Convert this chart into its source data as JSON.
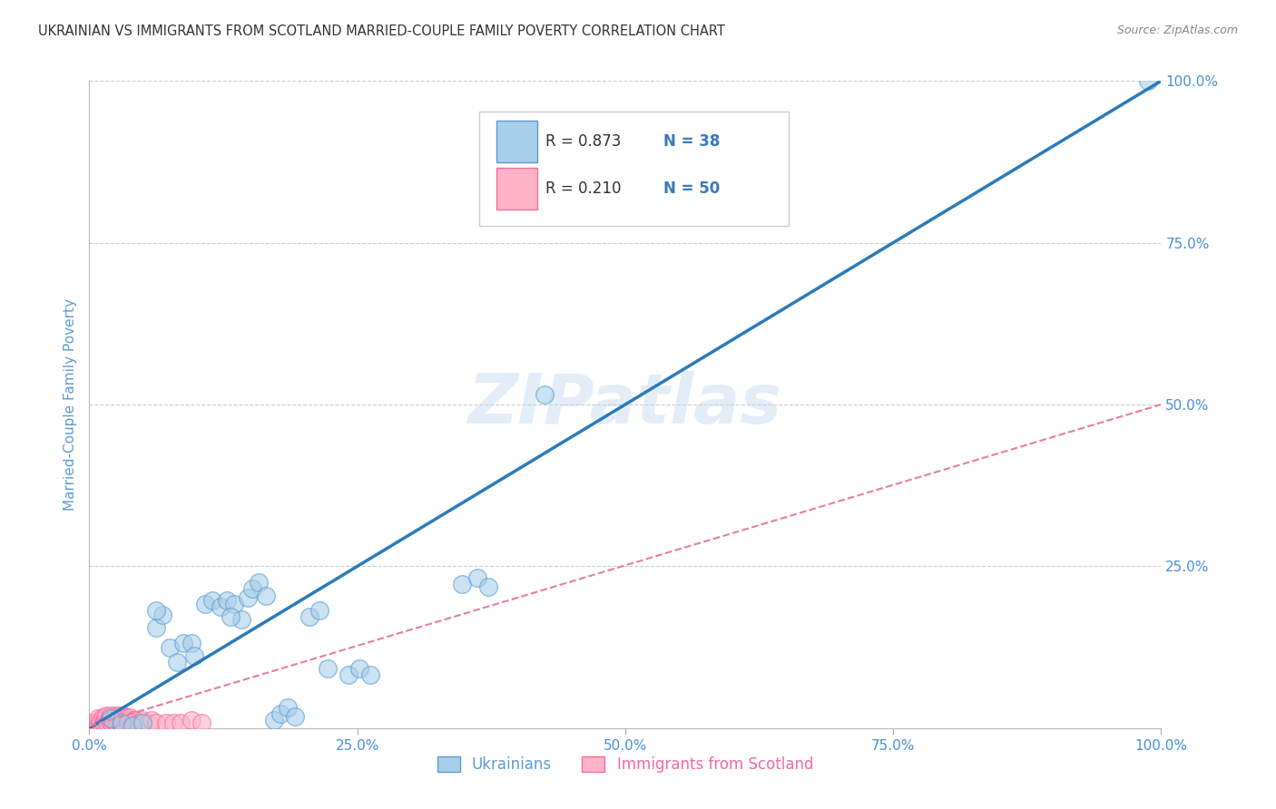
{
  "title": "UKRAINIAN VS IMMIGRANTS FROM SCOTLAND MARRIED-COUPLE FAMILY POVERTY CORRELATION CHART",
  "source": "Source: ZipAtlas.com",
  "ylabel": "Married-Couple Family Poverty",
  "watermark": "ZIPatlas",
  "xlim": [
    0,
    1.0
  ],
  "ylim": [
    0,
    1.0
  ],
  "xticks": [
    0.0,
    0.25,
    0.5,
    0.75,
    1.0
  ],
  "yticks": [
    0.25,
    0.5,
    0.75,
    1.0
  ],
  "xticklabels": [
    "0.0%",
    "25.0%",
    "50.0%",
    "75.0%",
    "100.0%"
  ],
  "yticklabels": [
    "25.0%",
    "50.0%",
    "75.0%",
    "100.0%"
  ],
  "legend_r_blue": "R = 0.873",
  "legend_n_blue": "N = 38",
  "legend_r_pink": "R = 0.210",
  "legend_n_pink": "N = 50",
  "legend_label_blue": "Ukrainians",
  "legend_label_pink": "Immigrants from Scotland",
  "blue_color": "#a8cfe8",
  "pink_color": "#ffb3c6",
  "blue_edge_color": "#5b9bd5",
  "pink_edge_color": "#f768a1",
  "blue_line_color": "#2b7bba",
  "pink_line_color": "#e87f9a",
  "r_text_color": "#333333",
  "n_text_color": "#3a7abf",
  "background_color": "#ffffff",
  "grid_color": "#cccccc",
  "title_color": "#333333",
  "ylabel_color": "#5b9bd5",
  "tick_color": "#4a90d9",
  "blue_scatter": [
    [
      0.02,
      0.015
    ],
    [
      0.03,
      0.008
    ],
    [
      0.04,
      0.004
    ],
    [
      0.05,
      0.008
    ],
    [
      0.062,
      0.155
    ],
    [
      0.068,
      0.175
    ],
    [
      0.075,
      0.125
    ],
    [
      0.082,
      0.102
    ],
    [
      0.088,
      0.132
    ],
    [
      0.095,
      0.132
    ],
    [
      0.098,
      0.112
    ],
    [
      0.108,
      0.192
    ],
    [
      0.115,
      0.198
    ],
    [
      0.122,
      0.188
    ],
    [
      0.128,
      0.198
    ],
    [
      0.135,
      0.192
    ],
    [
      0.142,
      0.168
    ],
    [
      0.148,
      0.202
    ],
    [
      0.152,
      0.215
    ],
    [
      0.158,
      0.225
    ],
    [
      0.165,
      0.205
    ],
    [
      0.172,
      0.012
    ],
    [
      0.178,
      0.022
    ],
    [
      0.185,
      0.032
    ],
    [
      0.192,
      0.018
    ],
    [
      0.205,
      0.172
    ],
    [
      0.215,
      0.182
    ],
    [
      0.222,
      0.092
    ],
    [
      0.242,
      0.082
    ],
    [
      0.252,
      0.092
    ],
    [
      0.262,
      0.082
    ],
    [
      0.348,
      0.222
    ],
    [
      0.362,
      0.232
    ],
    [
      0.372,
      0.218
    ],
    [
      0.425,
      0.515
    ],
    [
      0.062,
      0.182
    ],
    [
      0.988,
      1.0
    ],
    [
      0.132,
      0.172
    ]
  ],
  "pink_scatter": [
    [
      0.001,
      0.003
    ],
    [
      0.003,
      0.008
    ],
    [
      0.004,
      0.004
    ],
    [
      0.007,
      0.008
    ],
    [
      0.008,
      0.004
    ],
    [
      0.008,
      0.015
    ],
    [
      0.01,
      0.008
    ],
    [
      0.011,
      0.012
    ],
    [
      0.012,
      0.016
    ],
    [
      0.013,
      0.008
    ],
    [
      0.014,
      0.012
    ],
    [
      0.015,
      0.016
    ],
    [
      0.016,
      0.02
    ],
    [
      0.017,
      0.008
    ],
    [
      0.018,
      0.012
    ],
    [
      0.019,
      0.016
    ],
    [
      0.02,
      0.02
    ],
    [
      0.021,
      0.008
    ],
    [
      0.022,
      0.012
    ],
    [
      0.023,
      0.016
    ],
    [
      0.024,
      0.02
    ],
    [
      0.025,
      0.008
    ],
    [
      0.026,
      0.012
    ],
    [
      0.027,
      0.016
    ],
    [
      0.028,
      0.02
    ],
    [
      0.029,
      0.008
    ],
    [
      0.03,
      0.012
    ],
    [
      0.031,
      0.016
    ],
    [
      0.032,
      0.02
    ],
    [
      0.033,
      0.008
    ],
    [
      0.034,
      0.012
    ],
    [
      0.035,
      0.016
    ],
    [
      0.036,
      0.008
    ],
    [
      0.037,
      0.012
    ],
    [
      0.038,
      0.016
    ],
    [
      0.04,
      0.008
    ],
    [
      0.041,
      0.012
    ],
    [
      0.042,
      0.008
    ],
    [
      0.043,
      0.012
    ],
    [
      0.045,
      0.008
    ],
    [
      0.048,
      0.008
    ],
    [
      0.05,
      0.012
    ],
    [
      0.055,
      0.008
    ],
    [
      0.058,
      0.012
    ],
    [
      0.062,
      0.008
    ],
    [
      0.072,
      0.008
    ],
    [
      0.078,
      0.008
    ],
    [
      0.085,
      0.008
    ],
    [
      0.095,
      0.012
    ],
    [
      0.105,
      0.008
    ]
  ],
  "blue_trend_x": [
    0.0,
    1.0
  ],
  "blue_trend_y": [
    0.0,
    1.0
  ],
  "pink_trend_x": [
    0.0,
    1.0
  ],
  "pink_trend_y": [
    0.003,
    0.5
  ]
}
